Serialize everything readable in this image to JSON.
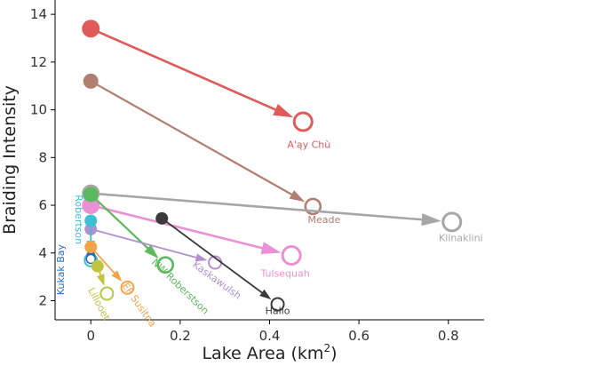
{
  "chart_data": {
    "type": "scatter",
    "title": "",
    "xlabel": "Lake Area (km",
    "xlabel_superscript": "2",
    "xlabel_suffix": ")",
    "ylabel": "Braiding Intensity",
    "xlim": [
      -0.08,
      0.88
    ],
    "ylim": [
      1.2,
      14.6
    ],
    "xticks": [
      0,
      0.2,
      0.4,
      0.6,
      0.8
    ],
    "xtick_labels": [
      "0",
      "0.2",
      "0.4",
      "0.6",
      "0.8"
    ],
    "yticks": [
      2,
      4,
      6,
      8,
      10,
      12,
      14
    ],
    "ytick_labels": [
      "2",
      "4",
      "6",
      "8",
      "10",
      "12",
      "14"
    ],
    "grid": false,
    "legend": "none",
    "marker_note": "filled circle = start point, open circle = end point; arrow from start to end",
    "series": [
      {
        "name": "A'ay Chù",
        "color": "#e05a5a",
        "start": [
          0.0,
          13.4
        ],
        "end": [
          0.475,
          9.5
        ],
        "size": "large"
      },
      {
        "name": "Meade",
        "color": "#b07f72",
        "start": [
          0.0,
          11.2
        ],
        "end": [
          0.497,
          5.95
        ],
        "size": "medium"
      },
      {
        "name": "Klinaklini",
        "color": "#a6a6a6",
        "start": [
          0.0,
          6.5
        ],
        "end": [
          0.808,
          5.3
        ],
        "size": "large"
      },
      {
        "name": "Tulsequah",
        "color": "#e991d4",
        "start": [
          0.0,
          6.0
        ],
        "end": [
          0.449,
          3.9
        ],
        "size": "large"
      },
      {
        "name": "NW Roberstson",
        "color": "#5db95d",
        "start": [
          0.0,
          6.45
        ],
        "end": [
          0.167,
          3.5
        ],
        "size": "medium"
      },
      {
        "name": "Kaskawulsh",
        "color": "#b18fd1",
        "start": [
          0.0,
          5.0
        ],
        "end": [
          0.278,
          3.6
        ],
        "size": "small"
      },
      {
        "name": "Hallo",
        "color": "#3a3a3a",
        "start": [
          0.159,
          5.45
        ],
        "end": [
          0.418,
          1.85
        ],
        "size": "small"
      },
      {
        "name": "Robertson",
        "color": "#3dc0d4",
        "start": [
          0.0,
          5.35
        ],
        "end": [
          0.0,
          3.7
        ],
        "size": "small"
      },
      {
        "name": "Kukak Bay",
        "color": "#2a6cb2",
        "start": [
          0.0,
          3.9
        ],
        "end": [
          0.0,
          3.75
        ],
        "size": "tiny"
      },
      {
        "name": "Lillooet",
        "color": "#bfc443",
        "start": [
          0.015,
          3.45
        ],
        "end": [
          0.036,
          2.3
        ],
        "size": "small"
      },
      {
        "name": "EF Susitna",
        "color": "#f4a347",
        "start": [
          0.0,
          4.25
        ],
        "end": [
          0.082,
          2.55
        ],
        "size": "small"
      }
    ],
    "point_labels": [
      {
        "text": "A'ąy Chù",
        "series": "A'ay Chù",
        "at": [
          0.488,
          8.4
        ],
        "rotate": 0,
        "anchor": "middle"
      },
      {
        "text": "Meade",
        "series": "Meade",
        "at": [
          0.522,
          5.25
        ],
        "rotate": 0,
        "anchor": "middle"
      },
      {
        "text": "Klinaklini",
        "series": "Klinaklini",
        "at": [
          0.828,
          4.5
        ],
        "rotate": 0,
        "anchor": "middle"
      },
      {
        "text": "Tulsequah",
        "series": "Tulsequah",
        "at": [
          0.435,
          3.0
        ],
        "rotate": 0,
        "anchor": "middle"
      },
      {
        "text": "NW Roberstson",
        "series": "NW Roberstson",
        "at": [
          0.195,
          2.5
        ],
        "rotate": 44,
        "anchor": "middle"
      },
      {
        "text": "Kaskawulsh",
        "series": "Kaskawulsh",
        "at": [
          0.278,
          2.75
        ],
        "rotate": 36,
        "anchor": "middle"
      },
      {
        "text": "Hallo",
        "series": "Hallo",
        "at": [
          0.418,
          1.45
        ],
        "rotate": 0,
        "anchor": "middle"
      },
      {
        "text": "Robertson",
        "series": "Robertson",
        "at": [
          -0.034,
          5.4
        ],
        "rotate": 90,
        "anchor": "middle"
      },
      {
        "text": "Kukak Bay",
        "series": "Kukak Bay",
        "at": [
          -0.06,
          3.3
        ],
        "rotate": -90,
        "anchor": "middle"
      },
      {
        "text": "Lillooet",
        "series": "Lillooet",
        "at": [
          0.012,
          1.8
        ],
        "rotate": 62,
        "anchor": "middle"
      },
      {
        "text": "EF Susitna",
        "series": "EF Susitna",
        "at": [
          0.102,
          1.75
        ],
        "rotate": 55,
        "anchor": "middle"
      }
    ]
  }
}
